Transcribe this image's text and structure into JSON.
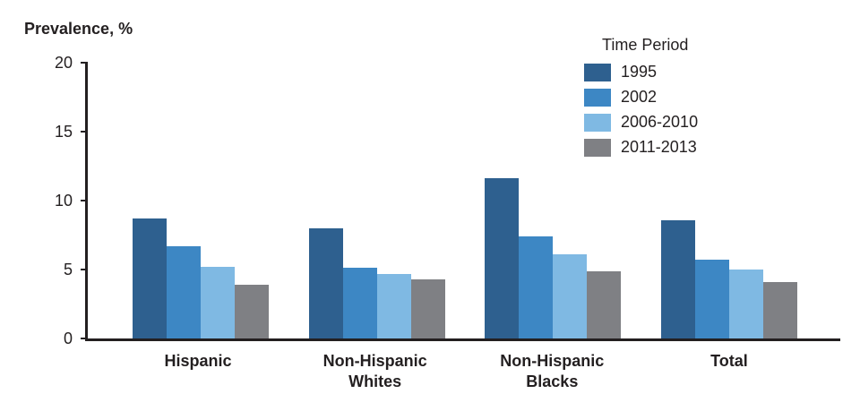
{
  "chart_data": {
    "type": "bar",
    "title": "Prevalence, %",
    "legend_title": "Time Period",
    "legend_position": "top-right",
    "grid": false,
    "categories": [
      "Hispanic",
      "Non-Hispanic Whites",
      "Non-Hispanic Blacks",
      "Total"
    ],
    "series": [
      {
        "name": "1995",
        "color": "#2E608F",
        "values": [
          8.7,
          8.0,
          11.6,
          8.6
        ]
      },
      {
        "name": "2002",
        "color": "#3D87C4",
        "values": [
          6.7,
          5.1,
          7.4,
          5.7
        ]
      },
      {
        "name": "2006-2010",
        "color": "#7FB9E3",
        "values": [
          5.2,
          4.7,
          6.1,
          5.0
        ]
      },
      {
        "name": "2011-2013",
        "color": "#7F8084",
        "values": [
          3.9,
          4.3,
          4.9,
          4.1
        ]
      }
    ],
    "ylim": [
      0,
      20
    ],
    "yticks": [
      0,
      5,
      10,
      15,
      20
    ]
  }
}
